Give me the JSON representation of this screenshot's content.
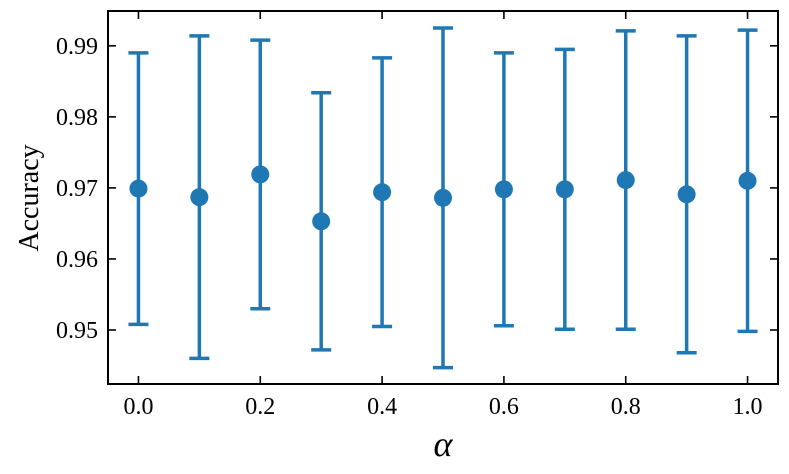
{
  "chart_data": {
    "type": "errorbar",
    "xlabel": "α",
    "ylabel": "Accuracy",
    "x": [
      0.0,
      0.1,
      0.2,
      0.3,
      0.4,
      0.5,
      0.6,
      0.7,
      0.8,
      0.9,
      1.0
    ],
    "values": [
      0.9699,
      0.9687,
      0.9719,
      0.9653,
      0.9694,
      0.9686,
      0.9698,
      0.9698,
      0.9711,
      0.9691,
      0.971
    ],
    "errors": [
      0.0191,
      0.0227,
      0.0189,
      0.0181,
      0.0189,
      0.0239,
      0.0192,
      0.0197,
      0.021,
      0.0223,
      0.0212
    ],
    "color": "#1f77b4",
    "xlim": [
      -0.05,
      1.05
    ],
    "ylim": [
      0.9424,
      0.9949
    ],
    "xticks": [
      {
        "value": 0,
        "label": "0.0"
      },
      0.2,
      0.4,
      0.6,
      0.8,
      {
        "value": 1,
        "label": "1.0"
      }
    ],
    "yticks": [
      0.95,
      0.96,
      0.97,
      0.98,
      0.99
    ],
    "grid": false
  }
}
